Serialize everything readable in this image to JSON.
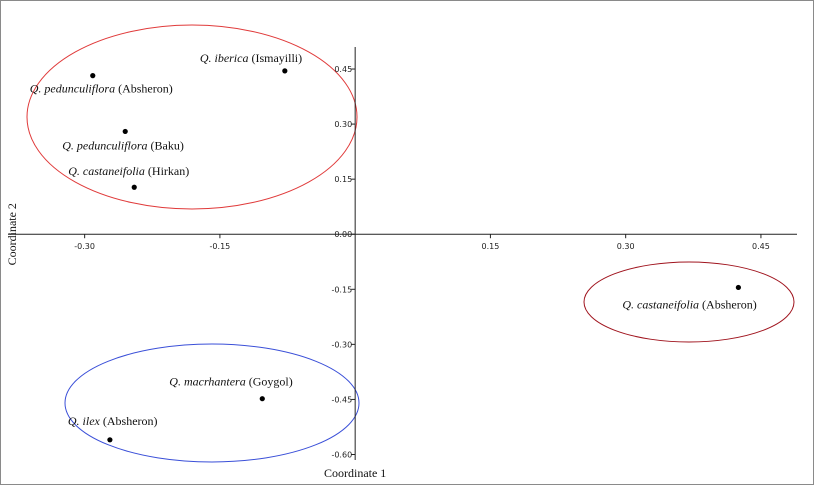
{
  "chart_data": {
    "type": "scatter",
    "title": "",
    "xlabel": "Coordinate 1",
    "ylabel": "Coordinate 2",
    "xlim": [
      -0.385,
      0.49
    ],
    "ylim": [
      -0.615,
      0.51
    ],
    "x_ticks": [
      -0.3,
      -0.15,
      0.15,
      0.3,
      0.45
    ],
    "x_tick_labels": [
      "-0.30",
      "-0.15",
      "0.15",
      "0.30",
      "0.45"
    ],
    "y_ticks": [
      0.45,
      0.3,
      0.15,
      0.0,
      -0.15,
      -0.3,
      -0.45,
      -0.6
    ],
    "y_tick_labels": [
      "0.45",
      "0.30",
      "0.15",
      "0.00",
      "-0.15",
      "-0.30",
      "-0.45",
      "-0.60"
    ],
    "grid": false,
    "points": [
      {
        "species": "Q. iberica",
        "locality": "(Ismayilli)",
        "x": -0.078,
        "y": 0.445
      },
      {
        "species": "Q. pedunculiflora",
        "locality": "(Absheron)",
        "x": -0.291,
        "y": 0.432
      },
      {
        "species": "Q. pedunculiflora",
        "locality": "(Baku)",
        "x": -0.255,
        "y": 0.28
      },
      {
        "species": "Q. castaneifolia",
        "locality": "(Hirkan)",
        "x": -0.245,
        "y": 0.128
      },
      {
        "species": "Q. castaneifolia",
        "locality": "(Absheron)",
        "x": 0.425,
        "y": -0.145
      },
      {
        "species": "Q. macrhantera",
        "locality": "(Goygol)",
        "x": -0.103,
        "y": -0.448
      },
      {
        "species": "Q. ilex",
        "locality": "(Absheron)",
        "x": -0.272,
        "y": -0.56
      }
    ],
    "groups": [
      {
        "color": "#e03a3a",
        "members": [
          0,
          1,
          2,
          3
        ]
      },
      {
        "color": "#a0141e",
        "members": [
          4
        ]
      },
      {
        "color": "#3a4fd8",
        "members": [
          5,
          6
        ]
      }
    ]
  }
}
